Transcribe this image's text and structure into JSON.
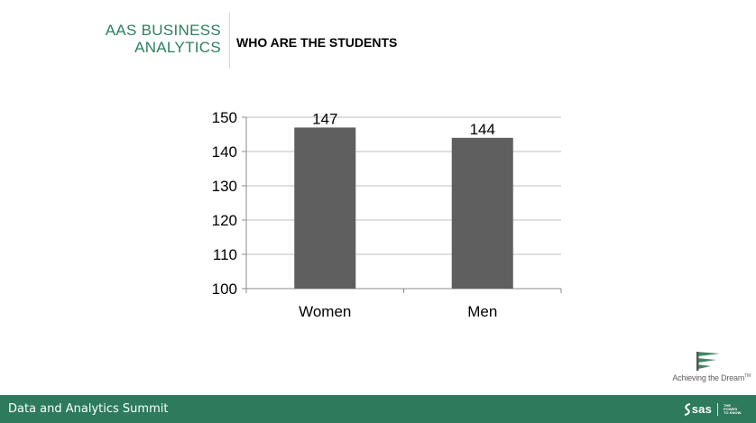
{
  "header": {
    "brand_line1": "AAS BUSINESS",
    "brand_line2": "ANALYTICS",
    "title": "WHO ARE THE STUDENTS"
  },
  "footer": {
    "title": "Data and Analytics Summit",
    "sas_logo_text": "sas",
    "sas_tagline_line1": "THE",
    "sas_tagline_line2": "POWER",
    "sas_tagline_line3": "TO KNOW."
  },
  "partner_logo": {
    "text": "Achieving the Dream",
    "mark": "TM"
  },
  "colors": {
    "brand_text": "#2d7f5e",
    "bar": "#5f5f5f",
    "footer_bg": "#2d7a5d",
    "grid": "#bfbfbf",
    "axis": "#8c8c8c",
    "logo_green": "#3b8a64"
  },
  "chart_data": {
    "type": "bar",
    "categories": [
      "Women",
      "Men"
    ],
    "values": [
      147,
      144
    ],
    "data_labels": [
      "147",
      "144"
    ],
    "ylim": [
      100,
      150
    ],
    "yticks": [
      100,
      110,
      120,
      130,
      140,
      150
    ],
    "grid": true,
    "legend": "none",
    "title": "",
    "xlabel": "",
    "ylabel": ""
  }
}
